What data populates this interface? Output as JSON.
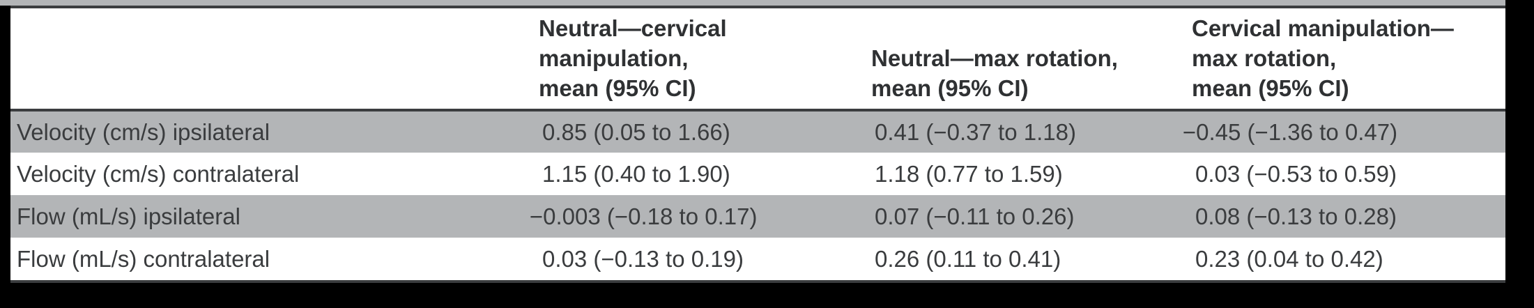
{
  "theme": {
    "surround": "#000000",
    "card-bg": "#ffffff",
    "row-shade": "#b3b5b7",
    "border-dark": "#3b3d3f",
    "header-text": "#2f3133",
    "text": "#3a3c3e"
  },
  "table": {
    "headers": [
      {
        "lines": [
          "Neutral—cervical",
          "manipulation,",
          "mean (95% CI)"
        ]
      },
      {
        "lines": [
          "Neutral—max rotation,",
          "mean (95% CI)"
        ]
      },
      {
        "lines": [
          "Cervical manipulation—",
          "max rotation,",
          "mean (95% CI)"
        ]
      }
    ],
    "rows": [
      {
        "label": "Velocity (cm/s) ipsilateral",
        "values": [
          "0.85 (0.05 to 1.66)",
          "0.41 (−0.37 to 1.18)",
          "−0.45 (−1.36 to 0.47)"
        ]
      },
      {
        "label": "Velocity (cm/s) contralateral",
        "values": [
          "1.15 (0.40 to 1.90)",
          "1.18 (0.77 to 1.59)",
          "0.03 (−0.53 to 0.59)"
        ]
      },
      {
        "label": "Flow (mL/s) ipsilateral",
        "values": [
          "−0.003 (−0.18 to 0.17)",
          "0.07 (−0.11 to 0.26)",
          "0.08 (−0.13 to 0.28)"
        ]
      },
      {
        "label": "Flow (mL/s) contralateral",
        "values": [
          "0.03 (−0.13 to 0.19)",
          "0.26 (0.11 to 0.41)",
          "0.23 (0.04 to 0.42)"
        ]
      }
    ]
  }
}
